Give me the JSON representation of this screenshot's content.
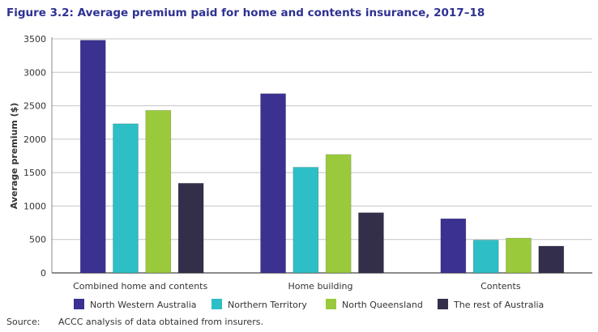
{
  "chart_data": {
    "type": "bar",
    "title": "Figure 3.2:  Average premium paid for home and contents insurance, 2017–18",
    "xlabel": "",
    "ylabel": "Average premium ($)",
    "ylim": [
      0,
      3500
    ],
    "yticks": [
      0,
      500,
      1000,
      1500,
      2000,
      2500,
      3000,
      3500
    ],
    "grid": true,
    "legend_position": "bottom",
    "categories": [
      "Combined home and contents",
      "Home building",
      "Contents"
    ],
    "series": [
      {
        "name": "North Western Australia",
        "color": "#3a3191",
        "values": [
          3480,
          2680,
          810
        ]
      },
      {
        "name": "Northern Territory",
        "color": "#2dbfc5",
        "values": [
          2230,
          1580,
          490
        ]
      },
      {
        "name": "North Queensland",
        "color": "#9aca3c",
        "values": [
          2430,
          1770,
          520
        ]
      },
      {
        "name": "The rest of Australia",
        "color": "#332e4a",
        "values": [
          1340,
          900,
          400
        ]
      }
    ]
  },
  "source": {
    "label": "Source:",
    "text": "ACCC analysis of data obtained from insurers."
  }
}
